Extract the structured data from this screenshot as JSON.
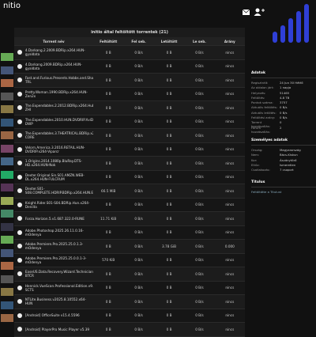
{
  "header": {
    "title": "nitio"
  },
  "table": {
    "title": "initio által feltöltött torrentek (21)",
    "columns": [
      "Torrent név",
      "Feltöltött",
      "Fel seb.",
      "Letöltött",
      "Le seb.",
      "Arány"
    ],
    "rows": [
      [
        "4.Darkang.2.2009.BDRip.x264.HUN-gyaldata",
        "0 B",
        "0 B/s",
        "0 B",
        "0 B/s",
        "nincs"
      ],
      [
        "4.Darkang.2009.BDRip.x264.HUN-gyaldata",
        "0 B",
        "0 B/s",
        "0 B",
        "0 B/s",
        "nincs"
      ],
      [
        "Fast.and.Furious.Presents.Hobbs.and.Shaw.2019.BDRIP.x264.HUN-TRL",
        "0 B",
        "0 B/s",
        "0 B",
        "0 B/s",
        "nincs"
      ],
      [
        "Pretty.Woman.1990.BDRip.x264.HUN-Zen2x",
        "0 B",
        "0 B/s",
        "0 B",
        "0 B/s",
        "nincs"
      ],
      [
        "The.Expendables.2.2012.BDRip.x264.Hub-ZHI",
        "0 B",
        "0 B/s",
        "0 B",
        "0 B/s",
        "nincs"
      ],
      [
        "The.Expendables.2010.HUN.DVDRIP.XviD-DWP",
        "0 B",
        "0 B/s",
        "0 B",
        "0 B/s",
        "nincs"
      ],
      [
        "The.Expendables.3.THEATRICAL.BDRip.x264.Hungarian-CORE",
        "0 B",
        "0 B/s",
        "0 B",
        "0 B/s",
        "nincs"
      ],
      [
        "Velorn.America.3.2016.RETAIL.HUN-DVDRIP.x264-Viparcr",
        "0 B",
        "0 B/s",
        "0 B",
        "0 B/s",
        "nincs"
      ],
      [
        "1.Origins.2014.1080p.BluRay.DTS-HD.x264.HUN-Nok",
        "0 B",
        "0 B/s",
        "0 B",
        "0 B/s",
        "nincs"
      ],
      [
        "Dexter.Original.Sin.S01.AMZN.WEB-DL.x264.HUN-FULCRUM",
        "0 B",
        "0 B/s",
        "0 B",
        "0 B/s",
        "nincs"
      ],
      [
        "Dexter.S01-S08.COMPLETE.HDRIP.BDRip.x264.HUN.ENG-zendaiod",
        "66.5 MiB",
        "0 B/s",
        "0 B",
        "0 B/s",
        "nincs"
      ],
      [
        "Knight.Rider.S01-S04.BDRip.Hun.x264-Deniita",
        "0 B",
        "0 B/s",
        "0 B",
        "0 B/s",
        "nincs"
      ],
      [
        "Forza.Horizon.5.v1.687.322.0-RUNE",
        "11.71 KiB",
        "0 B/s",
        "0 B",
        "0 B/s",
        "nincs"
      ],
      [
        "Adobe.Photoshop.2025.26.11.0.16-mOdenya",
        "0 B",
        "0 B/s",
        "0 B",
        "0 B/s",
        "nincs"
      ],
      [
        "Adobe.Premiere.Pro.2025.25.0.1.3-mOdenya",
        "0 B",
        "0 B/s",
        "3.78 GiB",
        "0 B/s",
        "0.000"
      ],
      [
        "Adobe.Premiere.Pro.2025.25.0.0.1-3-mOdenya",
        "570 KiB",
        "0 B/s",
        "0 B",
        "0 B/s",
        "nincs"
      ],
      [
        "EaseUS.Data.Recovery.Wizard.Technician.v19.1.0.0-BTCR",
        "0 B",
        "0 B/s",
        "0 B",
        "0 B/s",
        "nincs"
      ],
      [
        "Hennick.VueScan.Professional.Edition.v9.8.33.10.x64-SCTS",
        "0 B",
        "0 B/s",
        "0 B",
        "0 B/s",
        "nincs"
      ],
      [
        "NTLite.Business.v2025.8.10552.x64-HUN",
        "0 B",
        "0 B/s",
        "0 B",
        "0 B/s",
        "nincs"
      ],
      [
        "[Android] OfficeSuite v15.4.5596",
        "0 B",
        "0 B/s",
        "0 B",
        "0 B/s",
        "nincs"
      ],
      [
        "[Android] PlayerPro Music Player v5.39",
        "0 B",
        "0 B/s",
        "0 B",
        "0 B/s",
        "nincs"
      ]
    ]
  },
  "side": {
    "data_title": "Adatok",
    "data": [
      [
        "Regisztrált:",
        "24 Jun 30 Hétfő"
      ],
      [
        "Az oldalon járt:",
        "1 napja"
      ],
      [
        "Helyezés:",
        "51465"
      ],
      [
        "Feltöltés:",
        "4.8 TB"
      ],
      [
        "Pontok száma:",
        "3757"
      ],
      [
        "Aktuális feltöltés:",
        "0 B/s"
      ],
      [
        "Aktuális letöltés:",
        "0 B/s"
      ],
      [
        "Feltöltési arány:",
        "0 B/s"
      ],
      [
        "Torrent hozzászólás:",
        "0"
      ],
      [
        "Fórum hozzászólás:",
        "2"
      ]
    ],
    "personal_title": "Személyes adatok",
    "personal": [
      [
        "Ország:",
        "Magyarország"
      ],
      [
        "Nem:",
        "Bács-Kiskun"
      ],
      [
        "Kor:",
        "Ásványtörő"
      ],
      [
        "Eltűz:",
        "Ismeretlen"
      ],
      [
        "Csatlakozás:",
        "7 csoport"
      ]
    ],
    "titulus_title": "Titulus",
    "titulus": "Feltöltötte a Titulust"
  }
}
